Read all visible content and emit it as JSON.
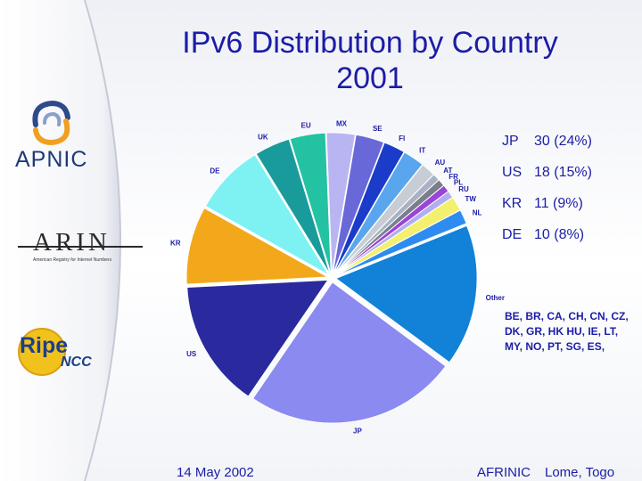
{
  "title_line1": "IPv6 Distribution by Country",
  "title_line2": "2001",
  "logos": {
    "apnic": "APNIC",
    "arin": "ARIN",
    "arin_tagline": "American Registry for Internet Numbers",
    "ripe": "Ripe",
    "ripe_ncc": "NCC"
  },
  "stats": [
    {
      "code": "JP",
      "value": "30 (24%)"
    },
    {
      "code": "US",
      "value": "18 (15%)"
    },
    {
      "code": "KR",
      "value": "11 (9%)"
    },
    {
      "code": "DE",
      "value": "10 (8%)"
    }
  ],
  "others_list": "BE, BR, CA, CH, CN, CZ, DK, GR, HK HU, IE, LT, MY, NO, PT, SG, ES,",
  "footer": {
    "date": "14 May 2002",
    "org": "AFRINIC",
    "place": "Lome, Togo"
  },
  "chart_data": {
    "type": "pie",
    "title": "IPv6 Distribution by Country 2001",
    "slices": [
      {
        "label": "JP",
        "value": 30,
        "color": "#8a8af0"
      },
      {
        "label": "US",
        "value": 18,
        "color": "#2a2a9e"
      },
      {
        "label": "KR",
        "value": 11,
        "color": "#f3a81c"
      },
      {
        "label": "DE",
        "value": 10,
        "color": "#7ef2f2"
      },
      {
        "label": "UK",
        "value": 5,
        "color": "#1a9b9b"
      },
      {
        "label": "EU",
        "value": 5,
        "color": "#23c2a2"
      },
      {
        "label": "MX",
        "value": 4,
        "color": "#b9b4f2"
      },
      {
        "label": "SE",
        "value": 4,
        "color": "#6868d8"
      },
      {
        "label": "FI",
        "value": 3,
        "color": "#1b3cc8"
      },
      {
        "label": "IT",
        "value": 3,
        "color": "#5aa6ee"
      },
      {
        "label": "AU",
        "value": 2,
        "color": "#c8ccd4"
      },
      {
        "label": "AT",
        "value": 1,
        "color": "#a8b2c4"
      },
      {
        "label": "FR",
        "value": 1,
        "color": "#7a7e8a"
      },
      {
        "label": "PL",
        "value": 1,
        "color": "#9a44d8"
      },
      {
        "label": "RU",
        "value": 1,
        "color": "#b2aeee"
      },
      {
        "label": "TW",
        "value": 2,
        "color": "#f2f06c"
      },
      {
        "label": "NL",
        "value": 2,
        "color": "#2e8cf0"
      },
      {
        "label": "Other",
        "value": 20,
        "color": "#1282d8"
      }
    ]
  }
}
